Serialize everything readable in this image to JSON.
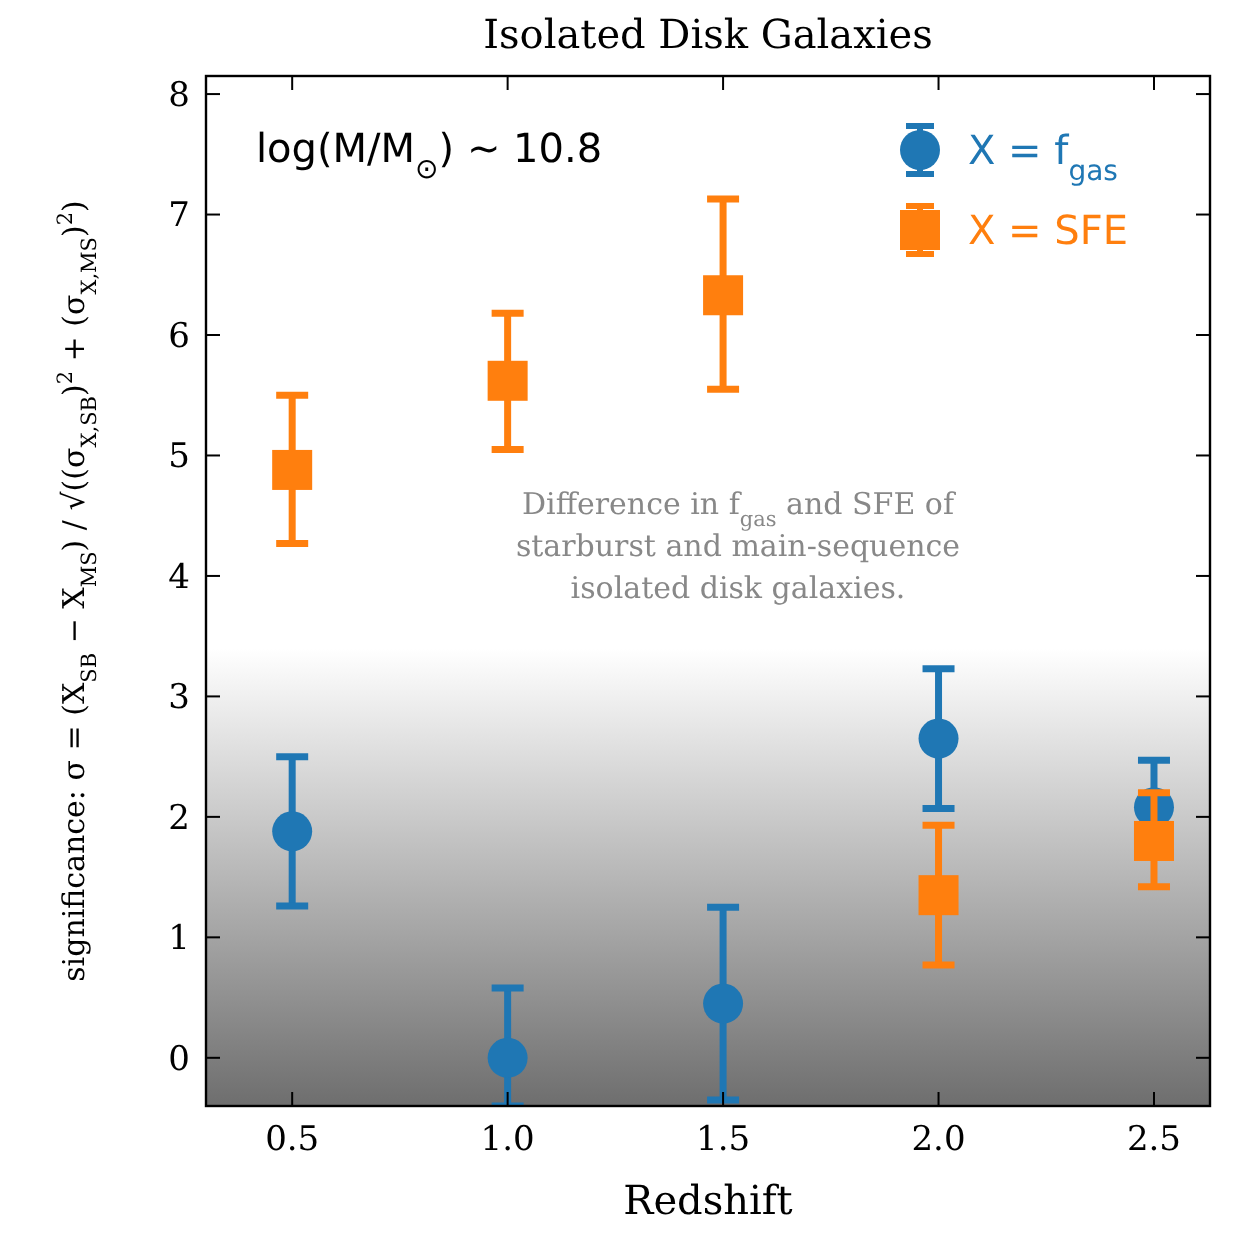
{
  "chart_data": {
    "type": "scatter",
    "title": "Isolated Disk Galaxies",
    "xlabel": "Redshift",
    "ylabel": "significance: σ = (X$_{SB}$ − X$_{MS}$) / √((σ$_{X,SB}$)$^{2}$ + (σ$_{X,MS}$)$^{2}$)",
    "x": [
      0.5,
      1.0,
      1.5,
      2.0,
      2.5
    ],
    "series": [
      {
        "name": "X = f$_{gas}$",
        "color": "#1f77b4",
        "marker": "circle",
        "values": [
          1.88,
          0.0,
          0.45,
          2.65,
          2.08
        ],
        "errors": [
          [
            1.26,
            2.5
          ],
          [
            -0.4,
            0.58
          ],
          [
            -0.35,
            1.25
          ],
          [
            2.07,
            3.23
          ],
          [
            2.08,
            2.47
          ]
        ]
      },
      {
        "name": "X = SFE",
        "color": "#ff7f0e",
        "marker": "square",
        "values": [
          4.88,
          5.62,
          6.33,
          1.35,
          1.8
        ],
        "errors": [
          [
            4.27,
            5.5
          ],
          [
            5.05,
            6.18
          ],
          [
            5.55,
            7.13
          ],
          [
            0.77,
            1.93
          ],
          [
            1.42,
            2.2
          ]
        ]
      }
    ],
    "xlim": [
      0.3,
      2.63
    ],
    "xticks": [
      {
        "value": 0.5,
        "label": "0.5"
      },
      {
        "value": 1.0,
        "label": "1.0"
      },
      {
        "value": 1.5,
        "label": "1.5"
      },
      {
        "value": 2.0,
        "label": "2.0"
      },
      {
        "value": 2.5,
        "label": "2.5"
      }
    ],
    "ylim": [
      -0.4,
      8.15
    ],
    "yticks": [
      0,
      1,
      2,
      3,
      4,
      5,
      6,
      7,
      8
    ],
    "bands": [
      {
        "axis": "y",
        "from": -0.4,
        "to": 3.4,
        "color": "#6e6e6e"
      }
    ],
    "annotations": [
      "log(M/M$_{⊙}$) ∼ 10.8",
      "Difference in f$_{gas}$ and SFE of starburst and main-sequence isolated disk galaxies."
    ],
    "legend": "top right"
  }
}
